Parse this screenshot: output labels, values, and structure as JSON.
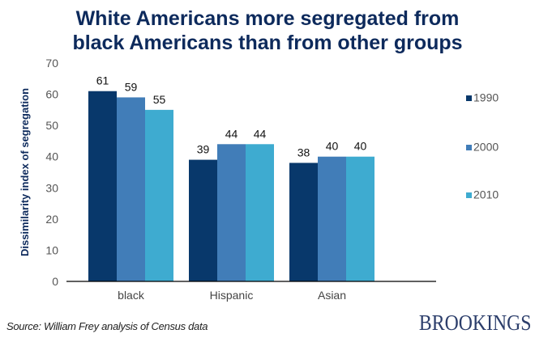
{
  "chart_data": {
    "type": "bar",
    "title": "White Americans more segregated from black Americans than from other groups",
    "title_lines": [
      "White Americans more segregated from",
      "black Americans than from other groups"
    ],
    "xlabel": "",
    "ylabel": "Dissimilarity index of segregation",
    "ylim": [
      0,
      70
    ],
    "yticks": [
      0,
      10,
      20,
      30,
      40,
      50,
      60,
      70
    ],
    "categories": [
      "black",
      "Hispanic",
      "Asian"
    ],
    "series": [
      {
        "name": "1990",
        "color": "#08386b",
        "values": [
          61,
          39,
          38
        ]
      },
      {
        "name": "2000",
        "color": "#417db8",
        "values": [
          59,
          44,
          40
        ]
      },
      {
        "name": "2010",
        "color": "#3eabd0",
        "values": [
          55,
          44,
          40
        ]
      }
    ],
    "data_labels": true,
    "grid": false,
    "legend_position": "right"
  },
  "footer": {
    "source": "Source: William Frey analysis of Census data",
    "brand": "BROOKINGS"
  }
}
